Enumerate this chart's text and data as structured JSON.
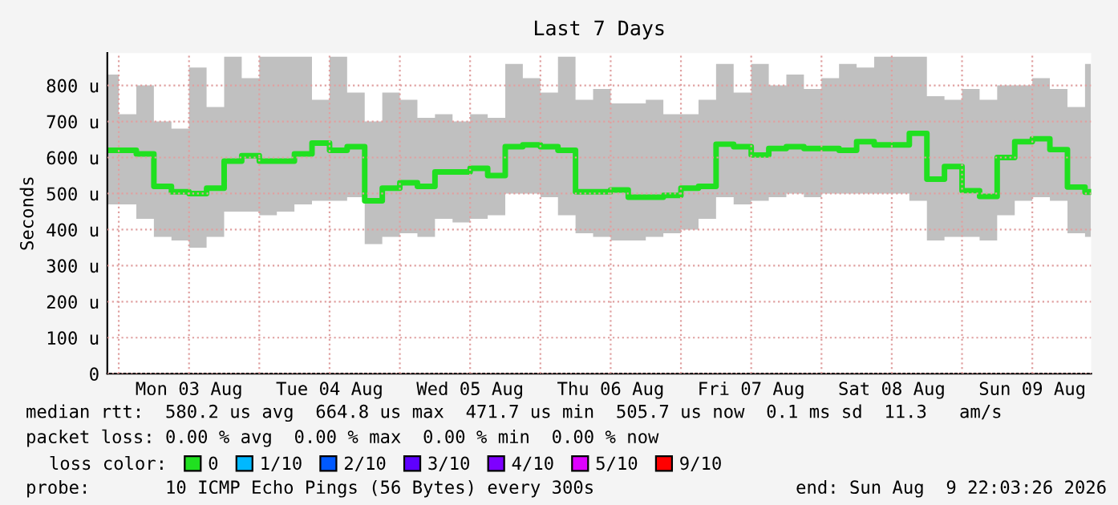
{
  "chart_data": {
    "type": "step",
    "title": "Last 7 Days",
    "ylabel": "Seconds",
    "x": [
      "2026-08-02T22:05",
      "2026-08-03T00:00",
      "2026-08-03T03:00",
      "2026-08-03T06:00",
      "2026-08-03T09:00",
      "2026-08-03T12:00",
      "2026-08-03T15:00",
      "2026-08-03T18:00",
      "2026-08-03T21:00",
      "2026-08-04T00:00",
      "2026-08-04T03:00",
      "2026-08-04T06:00",
      "2026-08-04T09:00",
      "2026-08-04T12:00",
      "2026-08-04T15:00",
      "2026-08-04T18:00",
      "2026-08-04T21:00",
      "2026-08-05T00:00",
      "2026-08-05T03:00",
      "2026-08-05T06:00",
      "2026-08-05T09:00",
      "2026-08-05T12:00",
      "2026-08-05T15:00",
      "2026-08-05T18:00",
      "2026-08-05T21:00",
      "2026-08-06T00:00",
      "2026-08-06T03:00",
      "2026-08-06T06:00",
      "2026-08-06T09:00",
      "2026-08-06T12:00",
      "2026-08-06T15:00",
      "2026-08-06T18:00",
      "2026-08-06T21:00",
      "2026-08-07T00:00",
      "2026-08-07T03:00",
      "2026-08-07T06:00",
      "2026-08-07T09:00",
      "2026-08-07T12:00",
      "2026-08-07T15:00",
      "2026-08-07T18:00",
      "2026-08-07T21:00",
      "2026-08-08T00:00",
      "2026-08-08T03:00",
      "2026-08-08T06:00",
      "2026-08-08T09:00",
      "2026-08-08T12:00",
      "2026-08-08T15:00",
      "2026-08-08T18:00",
      "2026-08-08T21:00",
      "2026-08-09T00:00",
      "2026-08-09T03:00",
      "2026-08-09T06:00",
      "2026-08-09T09:00",
      "2026-08-09T12:00",
      "2026-08-09T15:00",
      "2026-08-09T18:00",
      "2026-08-09T21:00",
      "2026-08-09T22:00"
    ],
    "series": [
      {
        "name": "0",
        "color": "#20e020",
        "values": [
          620,
          620,
          610,
          520,
          505,
          500,
          515,
          590,
          605,
          590,
          590,
          610,
          640,
          620,
          630,
          480,
          515,
          530,
          520,
          560,
          560,
          570,
          550,
          630,
          635,
          630,
          620,
          505,
          505,
          510,
          490,
          490,
          495,
          515,
          520,
          637,
          630,
          607,
          625,
          630,
          625,
          625,
          620,
          644,
          635,
          635,
          667,
          540,
          575,
          508,
          492,
          600,
          644,
          652,
          622,
          518,
          504,
          505
        ],
        "lower": [
          470,
          470,
          430,
          380,
          370,
          350,
          380,
          450,
          450,
          440,
          450,
          470,
          480,
          480,
          490,
          360,
          380,
          390,
          380,
          430,
          420,
          430,
          440,
          500,
          500,
          490,
          440,
          390,
          380,
          370,
          370,
          380,
          390,
          400,
          430,
          490,
          470,
          480,
          490,
          500,
          490,
          500,
          500,
          500,
          500,
          500,
          480,
          370,
          380,
          380,
          370,
          440,
          480,
          490,
          480,
          390,
          380,
          380
        ],
        "upper": [
          830,
          720,
          800,
          700,
          680,
          850,
          740,
          880,
          820,
          880,
          880,
          880,
          760,
          880,
          780,
          700,
          780,
          760,
          710,
          720,
          700,
          720,
          710,
          860,
          820,
          780,
          880,
          760,
          790,
          750,
          750,
          760,
          720,
          720,
          760,
          860,
          780,
          860,
          800,
          830,
          790,
          820,
          860,
          850,
          880,
          880,
          880,
          770,
          760,
          790,
          760,
          800,
          800,
          820,
          790,
          740,
          860,
          840
        ]
      },
      {
        "name": "1/10",
        "color": "#00b8ff",
        "values": [
          null,
          null,
          null,
          null,
          null,
          null,
          null,
          null,
          null,
          null,
          null,
          null,
          null,
          null,
          null,
          null,
          null,
          null,
          null,
          null,
          null,
          null,
          null,
          null,
          null,
          null,
          null,
          null,
          null,
          null,
          null,
          null,
          null,
          null,
          null,
          null,
          null,
          null,
          null,
          null,
          null,
          null,
          null,
          null,
          null,
          null,
          null,
          null,
          null,
          null,
          null,
          null,
          null,
          null,
          null,
          null,
          null,
          null
        ]
      },
      {
        "name": "2/10",
        "color": "#0059ff",
        "values": [
          null,
          null,
          null,
          null,
          null,
          null,
          null,
          null,
          null,
          null,
          null,
          null,
          null,
          null,
          null,
          null,
          null,
          null,
          null,
          null,
          null,
          null,
          null,
          null,
          null,
          null,
          null,
          null,
          null,
          null,
          null,
          null,
          null,
          null,
          null,
          null,
          null,
          null,
          null,
          null,
          null,
          null,
          null,
          null,
          null,
          null,
          null,
          null,
          null,
          null,
          null,
          null,
          null,
          null,
          null,
          null,
          null,
          null
        ]
      },
      {
        "name": "3/10",
        "color": "#5e00ff",
        "values": [
          null,
          null,
          null,
          null,
          null,
          null,
          null,
          null,
          null,
          null,
          null,
          null,
          null,
          null,
          null,
          null,
          null,
          null,
          null,
          null,
          null,
          null,
          null,
          null,
          null,
          null,
          null,
          null,
          null,
          null,
          null,
          null,
          null,
          null,
          null,
          null,
          null,
          null,
          null,
          null,
          null,
          null,
          null,
          null,
          null,
          null,
          null,
          null,
          null,
          null,
          null,
          null,
          null,
          null,
          null,
          null,
          null,
          null
        ]
      },
      {
        "name": "4/10",
        "color": "#7e00ff",
        "values": [
          null,
          null,
          null,
          null,
          null,
          null,
          null,
          null,
          null,
          null,
          null,
          null,
          null,
          null,
          null,
          null,
          null,
          null,
          null,
          null,
          null,
          null,
          null,
          null,
          null,
          null,
          null,
          null,
          null,
          null,
          null,
          null,
          null,
          null,
          null,
          null,
          null,
          null,
          null,
          null,
          null,
          null,
          null,
          null,
          null,
          null,
          null,
          null,
          null,
          null,
          null,
          null,
          null,
          null,
          null,
          null,
          null,
          null
        ]
      },
      {
        "name": "5/10",
        "color": "#dd00ff",
        "values": [
          null,
          null,
          null,
          null,
          null,
          null,
          null,
          null,
          null,
          null,
          null,
          null,
          null,
          null,
          null,
          null,
          null,
          null,
          null,
          null,
          null,
          null,
          null,
          null,
          null,
          null,
          null,
          null,
          null,
          null,
          null,
          null,
          null,
          null,
          null,
          null,
          null,
          null,
          null,
          null,
          null,
          null,
          null,
          null,
          null,
          null,
          null,
          null,
          null,
          null,
          null,
          null,
          null,
          null,
          null,
          null,
          null,
          null
        ]
      },
      {
        "name": "9/10",
        "color": "#ff0000",
        "values": [
          null,
          null,
          null,
          null,
          null,
          null,
          null,
          null,
          null,
          null,
          null,
          null,
          null,
          null,
          null,
          null,
          null,
          null,
          null,
          null,
          null,
          null,
          null,
          null,
          null,
          null,
          null,
          null,
          null,
          null,
          null,
          null,
          null,
          null,
          null,
          null,
          null,
          null,
          null,
          null,
          null,
          null,
          null,
          null,
          null,
          null,
          null,
          null,
          null,
          null,
          null,
          null,
          null,
          null,
          null,
          null,
          null,
          null
        ]
      }
    ],
    "legend": "bottom",
    "legend_title": "loss color:",
    "xlim": [
      "2026-08-02T22:03",
      "2026-08-09T22:03"
    ],
    "xticks": [
      {
        "value": "2026-08-03T00:00",
        "label": null
      },
      {
        "value": "2026-08-03T12:00",
        "label": "Mon 03 Aug"
      },
      {
        "value": "2026-08-04T00:00",
        "label": null
      },
      {
        "value": "2026-08-04T12:00",
        "label": "Tue 04 Aug"
      },
      {
        "value": "2026-08-05T00:00",
        "label": null
      },
      {
        "value": "2026-08-05T12:00",
        "label": "Wed 05 Aug"
      },
      {
        "value": "2026-08-06T00:00",
        "label": null
      },
      {
        "value": "2026-08-06T12:00",
        "label": "Thu 06 Aug"
      },
      {
        "value": "2026-08-07T00:00",
        "label": null
      },
      {
        "value": "2026-08-07T12:00",
        "label": "Fri 07 Aug"
      },
      {
        "value": "2026-08-08T00:00",
        "label": null
      },
      {
        "value": "2026-08-08T12:00",
        "label": "Sat 08 Aug"
      },
      {
        "value": "2026-08-09T00:00",
        "label": null
      },
      {
        "value": "2026-08-09T12:00",
        "label": "Sun 09 Aug"
      }
    ],
    "ylim": [
      0,
      890
    ],
    "yticks": [
      0,
      {
        "value": 100,
        "label": "100 u"
      },
      {
        "value": 200,
        "label": "200 u"
      },
      {
        "value": 300,
        "label": "300 u"
      },
      {
        "value": 400,
        "label": "400 u"
      },
      {
        "value": 500,
        "label": "500 u"
      },
      {
        "value": 600,
        "label": "600 u"
      },
      {
        "value": 700,
        "label": "700 u"
      },
      {
        "value": 800,
        "label": "800 u"
      }
    ],
    "grid": true,
    "annotations": [
      "median rtt:  580.2 us avg  664.8 us max  471.7 us min  505.7 us now  0.1 ms sd  11.3   am/s",
      "packet loss: 0.00 % avg  0.00 % max  0.00 % min  0.00 % now",
      "probe:       10 ICMP Echo Pings (56 Bytes) every 300s",
      "end: Sun Aug  9 22:03:26 2026"
    ]
  }
}
